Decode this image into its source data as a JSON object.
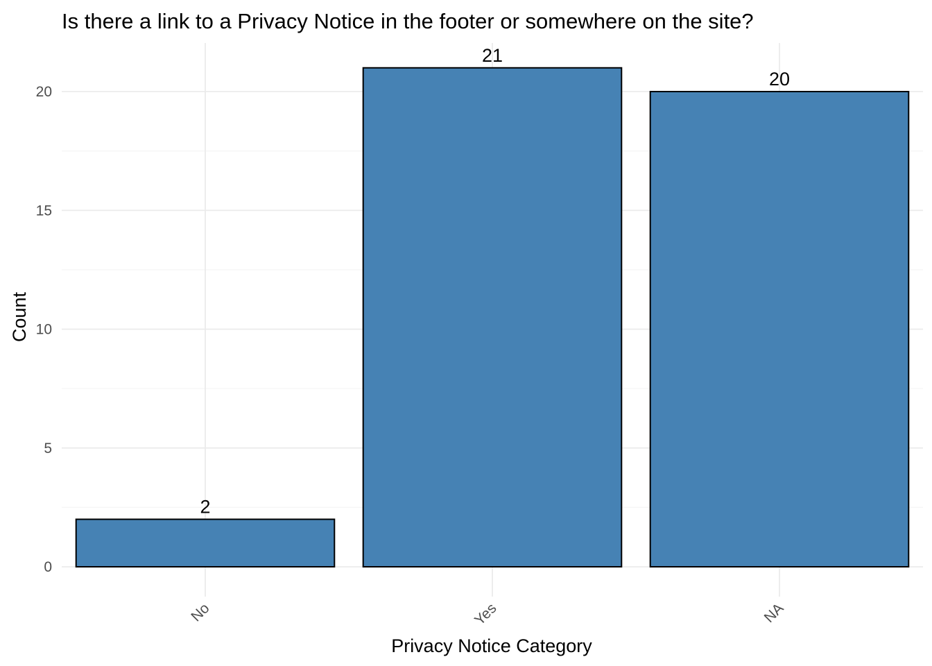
{
  "chart_data": {
    "type": "bar",
    "title": "Is there a link to a Privacy Notice in the footer or somewhere on the site?",
    "xlabel": "Privacy Notice Category",
    "ylabel": "Count",
    "categories": [
      "No",
      "Yes",
      "NA"
    ],
    "values": [
      2,
      21,
      20
    ],
    "data_labels": [
      "2",
      "21",
      "20"
    ],
    "ylim": [
      0,
      22
    ],
    "y_ticks": [
      0,
      5,
      10,
      15,
      20
    ],
    "y_tick_labels": [
      "0",
      "5",
      "10",
      "15",
      "20"
    ],
    "x_tick_rotation": 45,
    "grid": true,
    "legend": "none",
    "bar_fill": "#4682b4",
    "bar_outline": "#000000",
    "grid_major_color": "#ebebeb",
    "grid_minor_color": "#f5f5f5"
  }
}
